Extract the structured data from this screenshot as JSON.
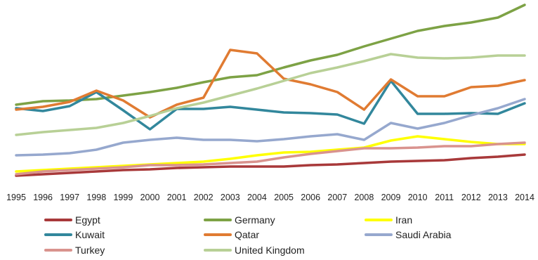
{
  "chart_data": {
    "type": "line",
    "title": "",
    "xlabel": "",
    "ylabel": "",
    "grid": false,
    "legend_position": "bottom",
    "x": [
      "1995",
      "1996",
      "1997",
      "1998",
      "1999",
      "2000",
      "2001",
      "2002",
      "2003",
      "2004",
      "2005",
      "2006",
      "2007",
      "2008",
      "2009",
      "2010",
      "2011",
      "2012",
      "2013",
      "2014"
    ],
    "ylim": [
      0,
      240
    ],
    "series": [
      {
        "name": "Egypt",
        "color": "#a8393a",
        "values": [
          2,
          4,
          6,
          8,
          10,
          11,
          13,
          14,
          15,
          15,
          15,
          17,
          18,
          20,
          22,
          23,
          24,
          27,
          29,
          32
        ]
      },
      {
        "name": "Germany",
        "color": "#7da245",
        "values": [
          103,
          108,
          109,
          111,
          116,
          121,
          127,
          135,
          142,
          145,
          156,
          166,
          174,
          186,
          197,
          208,
          215,
          220,
          227,
          245
        ]
      },
      {
        "name": "Iran",
        "color": "#ffff00",
        "values": [
          8,
          10,
          12,
          14,
          16,
          18,
          20,
          22,
          26,
          31,
          35,
          36,
          39,
          42,
          52,
          58,
          54,
          50,
          47,
          47
        ]
      },
      {
        "name": "Kuwait",
        "color": "#32879c",
        "values": [
          98,
          94,
          101,
          121,
          95,
          68,
          97,
          97,
          100,
          96,
          92,
          91,
          89,
          76,
          137,
          90,
          90,
          91,
          90,
          105
        ]
      },
      {
        "name": "Qatar",
        "color": "#e07b32",
        "values": [
          96,
          100,
          107,
          123,
          109,
          85,
          103,
          113,
          181,
          176,
          140,
          132,
          121,
          96,
          139,
          115,
          115,
          128,
          130,
          138
        ]
      },
      {
        "name": "Saudi Arabia",
        "color": "#96a8ce",
        "values": [
          31,
          32,
          34,
          39,
          49,
          53,
          56,
          53,
          53,
          51,
          54,
          58,
          61,
          53,
          77,
          69,
          77,
          88,
          98,
          111
        ]
      },
      {
        "name": "Turkey",
        "color": "#d9938e",
        "values": [
          4,
          8,
          10,
          12,
          14,
          17,
          17,
          18,
          20,
          22,
          28,
          33,
          37,
          41,
          41,
          42,
          44,
          44,
          47,
          49
        ]
      },
      {
        "name": "United Kingdom",
        "color": "#b8d096",
        "values": [
          60,
          64,
          67,
          70,
          77,
          87,
          98,
          106,
          116,
          126,
          137,
          148,
          156,
          165,
          175,
          170,
          169,
          170,
          173,
          173
        ]
      }
    ]
  }
}
